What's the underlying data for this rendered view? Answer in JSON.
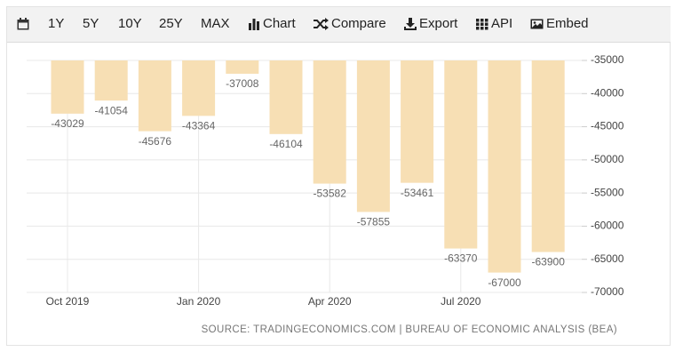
{
  "toolbar": [
    "1Y",
    "5Y",
    "10Y",
    "25Y",
    "MAX",
    "Chart",
    "Compare",
    "Export",
    "API",
    "Embed"
  ],
  "chart_data": {
    "type": "bar",
    "categories": [
      "Oct 2019",
      null,
      null,
      "Jan 2020",
      null,
      null,
      "Apr 2020",
      null,
      null,
      "Jul 2020",
      null,
      null
    ],
    "values": [
      -43029,
      -41054,
      -45676,
      -43364,
      -37008,
      -46104,
      -53582,
      -57855,
      -53461,
      -63370,
      -67000,
      -63900
    ],
    "color": "#f7dfb4",
    "ylim": [
      -70000,
      -35000
    ],
    "yticks": [
      -35000,
      -40000,
      -45000,
      -50000,
      -55000,
      -60000,
      -65000,
      -70000
    ],
    "grid": true,
    "source": "SOURCE: TRADINGECONOMICS.COM | BUREAU OF ECONOMIC ANALYSIS (BEA)"
  }
}
